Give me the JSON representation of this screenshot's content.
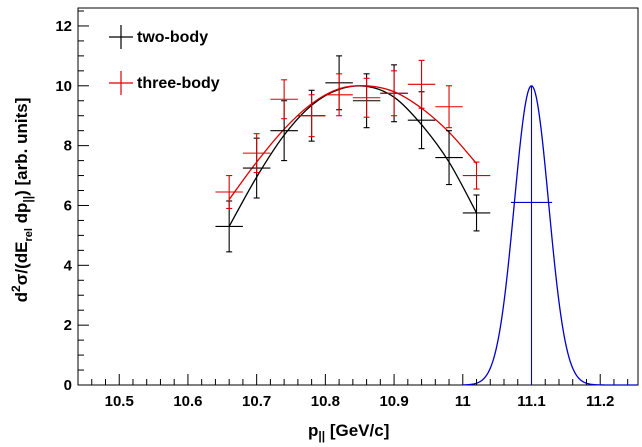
{
  "chart_data": {
    "type": "scatter",
    "xlabel": {
      "base": "p",
      "sub": "||",
      "unit": " [GeV/c]"
    },
    "ylabel": {
      "d": "d",
      "sup": "2",
      "sigma": "σ/(dE",
      "sub_rel": "rel",
      "dp": " dp",
      "sub_par": "||",
      "tail": ") [arb. units]"
    },
    "xlim": [
      10.44,
      11.255
    ],
    "ylim": [
      0,
      12.6
    ],
    "x_ticks": [
      "10.5",
      "10.6",
      "10.7",
      "10.8",
      "10.9",
      "11",
      "11.1",
      "11.2"
    ],
    "x_tick_values": [
      10.5,
      10.6,
      10.7,
      10.8,
      10.9,
      11.0,
      11.1,
      11.2
    ],
    "y_ticks": [
      "0",
      "2",
      "4",
      "6",
      "8",
      "10",
      "12"
    ],
    "y_tick_values": [
      0,
      2,
      4,
      6,
      8,
      10,
      12
    ],
    "legend_position": "top-left",
    "series": [
      {
        "name": "two-body",
        "color": "#000000",
        "x": [
          10.66,
          10.7,
          10.74,
          10.78,
          10.82,
          10.86,
          10.9,
          10.94,
          10.98,
          11.02
        ],
        "y": [
          5.3,
          7.25,
          8.5,
          9.0,
          10.1,
          9.5,
          9.75,
          8.85,
          7.6,
          5.75
        ],
        "xerr": 0.02,
        "yerr": [
          0.85,
          1.0,
          1.0,
          0.85,
          0.9,
          0.9,
          0.95,
          0.95,
          0.9,
          0.6
        ],
        "fit_x": [
          10.66,
          10.7,
          10.74,
          10.78,
          10.82,
          10.86,
          10.9,
          10.94,
          10.98,
          11.02
        ],
        "fit_y": [
          5.3,
          6.95,
          8.35,
          9.35,
          9.88,
          9.98,
          9.62,
          8.7,
          7.45,
          5.75
        ]
      },
      {
        "name": "three-body",
        "color": "#dd0000",
        "x": [
          10.66,
          10.7,
          10.74,
          10.78,
          10.82,
          10.86,
          10.9,
          10.94,
          10.98,
          11.02
        ],
        "y": [
          6.45,
          7.75,
          9.55,
          9.0,
          9.7,
          9.6,
          9.75,
          10.05,
          9.3,
          7.0
        ],
        "xerr": 0.02,
        "yerr": [
          0.55,
          0.65,
          0.65,
          0.7,
          0.7,
          0.65,
          0.75,
          0.8,
          0.7,
          0.45
        ],
        "fit_x": [
          10.66,
          10.7,
          10.74,
          10.78,
          10.82,
          10.86,
          10.9,
          10.94,
          10.98,
          11.02
        ],
        "fit_y": [
          6.2,
          7.45,
          8.55,
          9.4,
          9.9,
          10.0,
          9.8,
          9.25,
          8.45,
          7.4
        ]
      }
    ],
    "resolution": {
      "color": "#0000cc",
      "shape": "gaussian",
      "mean": 11.1,
      "peak": 10.0,
      "sigma": 0.025,
      "x_range": [
        11.0,
        11.255
      ],
      "fwhm_marker": {
        "x_from": 11.07,
        "x_to": 11.13,
        "y": 6.1
      }
    }
  }
}
